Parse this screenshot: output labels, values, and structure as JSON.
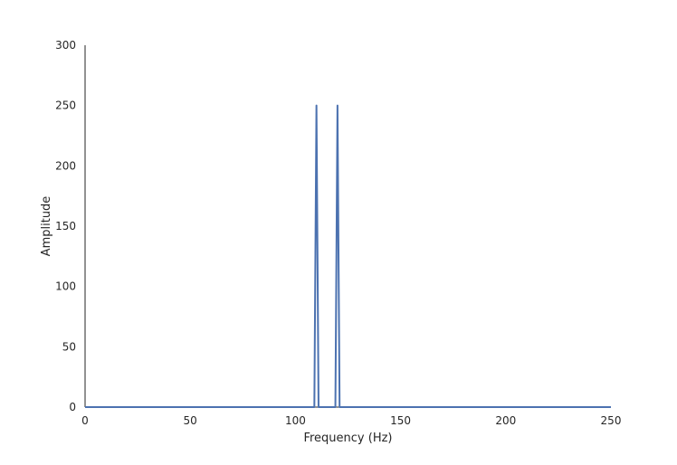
{
  "chart_data": {
    "type": "line",
    "title": "",
    "xlabel": "Frequency (Hz)",
    "ylabel": "Amplitude",
    "xlim": [
      0,
      250
    ],
    "ylim": [
      0,
      300
    ],
    "xticks": [
      "0",
      "50",
      "100",
      "150",
      "200",
      "250"
    ],
    "yticks": [
      "0",
      "50",
      "100",
      "150",
      "200",
      "250",
      "300"
    ],
    "grid": false,
    "series": [
      {
        "color": "#4c72b0",
        "points": [
          [
            0,
            0
          ],
          [
            109,
            0
          ],
          [
            110,
            250
          ],
          [
            111,
            0
          ],
          [
            119,
            0
          ],
          [
            120,
            250
          ],
          [
            121,
            0
          ],
          [
            250,
            0
          ]
        ]
      }
    ]
  }
}
